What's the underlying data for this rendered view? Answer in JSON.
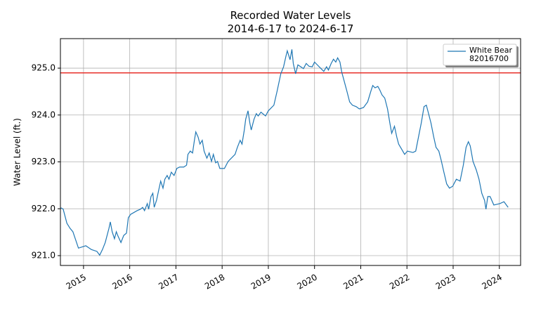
{
  "chart_data": {
    "type": "line",
    "title": "Recorded Water Levels\n2014-6-17 to 2024-6-17",
    "ylabel": "Water Level (ft.)",
    "xlim": [
      2014.5,
      2024.46
    ],
    "xticks": [
      2015,
      2016,
      2017,
      2018,
      2019,
      2020,
      2021,
      2022,
      2023,
      2024
    ],
    "ylim": [
      920.79,
      925.63
    ],
    "yticks": [
      {
        "value": 921,
        "label": "921.0"
      },
      {
        "value": 922,
        "label": "922.0"
      },
      {
        "value": 923,
        "label": "923.0"
      },
      {
        "value": 924,
        "label": "924.0"
      },
      {
        "value": 925,
        "label": "925.0"
      }
    ],
    "grid": true,
    "legend": "upper right",
    "reference_line": {
      "value": 924.9,
      "color": "#e8302a"
    },
    "series": [
      {
        "name": "White Bear\n82016700",
        "color": "#1f77b4",
        "x": [
          2014.51,
          2014.56,
          2014.64,
          2014.71,
          2014.77,
          2014.89,
          2015.05,
          2015.17,
          2015.29,
          2015.35,
          2015.41,
          2015.47,
          2015.55,
          2015.58,
          2015.62,
          2015.67,
          2015.71,
          2015.74,
          2015.81,
          2015.87,
          2015.93,
          2015.97,
          2016.02,
          2016.16,
          2016.23,
          2016.28,
          2016.32,
          2016.38,
          2016.41,
          2016.46,
          2016.5,
          2016.53,
          2016.58,
          2016.63,
          2016.67,
          2016.72,
          2016.76,
          2016.81,
          2016.85,
          2016.9,
          2016.96,
          2017.02,
          2017.08,
          2017.17,
          2017.23,
          2017.26,
          2017.31,
          2017.36,
          2017.4,
          2017.43,
          2017.48,
          2017.52,
          2017.57,
          2017.61,
          2017.67,
          2017.72,
          2017.77,
          2017.81,
          2017.86,
          2017.9,
          2017.95,
          2018.05,
          2018.13,
          2018.28,
          2018.33,
          2018.39,
          2018.43,
          2018.48,
          2018.51,
          2018.56,
          2018.6,
          2018.63,
          2018.69,
          2018.74,
          2018.78,
          2018.84,
          2018.94,
          2019.0,
          2019.12,
          2019.19,
          2019.27,
          2019.33,
          2019.38,
          2019.41,
          2019.47,
          2019.51,
          2019.54,
          2019.59,
          2019.64,
          2019.7,
          2019.76,
          2019.82,
          2019.88,
          2019.95,
          2020.0,
          2020.06,
          2020.14,
          2020.2,
          2020.26,
          2020.3,
          2020.36,
          2020.41,
          2020.46,
          2020.5,
          2020.55,
          2020.59,
          2020.64,
          2020.7,
          2020.76,
          2020.82,
          2020.9,
          2020.97,
          2021.06,
          2021.15,
          2021.22,
          2021.26,
          2021.31,
          2021.37,
          2021.41,
          2021.46,
          2021.52,
          2021.58,
          2021.63,
          2021.67,
          2021.73,
          2021.78,
          2021.82,
          2021.88,
          2021.95,
          2022.01,
          2022.13,
          2022.19,
          2022.25,
          2022.31,
          2022.37,
          2022.42,
          2022.46,
          2022.52,
          2022.58,
          2022.63,
          2022.69,
          2022.74,
          2022.8,
          2022.86,
          2022.92,
          2022.99,
          2023.07,
          2023.15,
          2023.22,
          2023.28,
          2023.33,
          2023.37,
          2023.43,
          2023.5,
          2023.56,
          2023.62,
          2023.68,
          2023.71,
          2023.75,
          2023.8,
          2023.88,
          2024.01,
          2024.1,
          2024.19
        ],
        "values": [
          922.02,
          921.99,
          921.69,
          921.58,
          921.51,
          921.16,
          921.21,
          921.13,
          921.09,
          921.01,
          921.13,
          921.28,
          921.58,
          921.72,
          921.51,
          921.36,
          921.51,
          921.43,
          921.28,
          921.43,
          921.48,
          921.81,
          921.88,
          921.96,
          921.99,
          922.03,
          921.96,
          922.11,
          921.99,
          922.26,
          922.33,
          922.03,
          922.18,
          922.41,
          922.59,
          922.44,
          922.63,
          922.71,
          922.63,
          922.78,
          922.71,
          922.86,
          922.89,
          922.89,
          922.93,
          923.16,
          923.23,
          923.19,
          923.46,
          923.64,
          923.53,
          923.38,
          923.46,
          923.23,
          923.08,
          923.19,
          923.01,
          923.16,
          922.98,
          923.01,
          922.86,
          922.86,
          923.01,
          923.16,
          923.31,
          923.46,
          923.38,
          923.68,
          923.91,
          924.09,
          923.83,
          923.68,
          923.91,
          924.03,
          923.98,
          924.06,
          923.98,
          924.09,
          924.21,
          924.51,
          924.88,
          925.03,
          925.25,
          925.37,
          925.18,
          925.4,
          925.1,
          924.88,
          925.07,
          925.03,
          924.99,
          925.1,
          925.04,
          925.03,
          925.13,
          925.07,
          924.99,
          924.93,
          925.03,
          924.96,
          925.1,
          925.19,
          925.13,
          925.22,
          925.13,
          924.91,
          924.73,
          924.51,
          924.28,
          924.21,
          924.18,
          924.13,
          924.16,
          924.28,
          924.51,
          924.63,
          924.58,
          924.61,
          924.54,
          924.43,
          924.36,
          924.13,
          923.83,
          923.61,
          923.76,
          923.53,
          923.38,
          923.28,
          923.16,
          923.23,
          923.2,
          923.23,
          923.53,
          923.83,
          924.18,
          924.21,
          924.06,
          923.83,
          923.53,
          923.31,
          923.23,
          923.04,
          922.78,
          922.53,
          922.44,
          922.48,
          922.63,
          922.59,
          922.93,
          923.31,
          923.43,
          923.34,
          923.01,
          922.83,
          922.63,
          922.33,
          922.18,
          921.99,
          922.26,
          922.26,
          922.08,
          922.11,
          922.15,
          922.03
        ]
      }
    ]
  }
}
